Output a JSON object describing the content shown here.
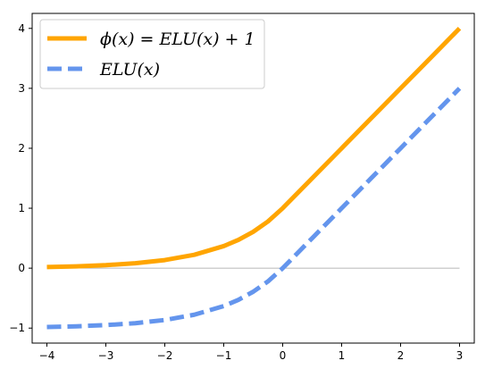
{
  "chart_data": {
    "type": "line",
    "title": "",
    "xlabel": "",
    "ylabel": "",
    "xlim": [
      -4.25,
      3.25
    ],
    "ylim": [
      -1.25,
      4.25
    ],
    "x_ticks": [
      -4,
      -3,
      -2,
      -1,
      0,
      1,
      2,
      3
    ],
    "y_ticks": [
      -1,
      0,
      1,
      2,
      3,
      4
    ],
    "x_tick_labels": [
      "−4",
      "−3",
      "−2",
      "−1",
      "0",
      "1",
      "2",
      "3"
    ],
    "y_tick_labels": [
      "−1",
      "0",
      "1",
      "2",
      "3",
      "4"
    ],
    "grid": false,
    "legend_position": "top-left",
    "reference_lines": [
      {
        "axis": "y",
        "value": 0,
        "color": "#a0a0a0"
      }
    ],
    "series": [
      {
        "name": "ϕ(x) = ELU(x) + 1",
        "color": "#ffa500",
        "style": "solid",
        "x": [
          -4.0,
          -3.5,
          -3.0,
          -2.5,
          -2.0,
          -1.5,
          -1.0,
          -0.75,
          -0.5,
          -0.25,
          0.0,
          0.5,
          1.0,
          1.5,
          2.0,
          2.5,
          3.0
        ],
        "y": [
          0.018,
          0.03,
          0.05,
          0.082,
          0.135,
          0.223,
          0.368,
          0.472,
          0.607,
          0.779,
          1.0,
          1.5,
          2.0,
          2.5,
          3.0,
          3.5,
          4.0
        ]
      },
      {
        "name": "ELU(x)",
        "color": "#6495ed",
        "style": "dashed",
        "x": [
          -4.0,
          -3.5,
          -3.0,
          -2.5,
          -2.0,
          -1.5,
          -1.0,
          -0.75,
          -0.5,
          -0.25,
          0.0,
          0.5,
          1.0,
          1.5,
          2.0,
          2.5,
          3.0
        ],
        "y": [
          -0.982,
          -0.97,
          -0.95,
          -0.918,
          -0.865,
          -0.777,
          -0.632,
          -0.528,
          -0.393,
          -0.221,
          0.0,
          0.5,
          1.0,
          1.5,
          2.0,
          2.5,
          3.0
        ]
      }
    ]
  }
}
